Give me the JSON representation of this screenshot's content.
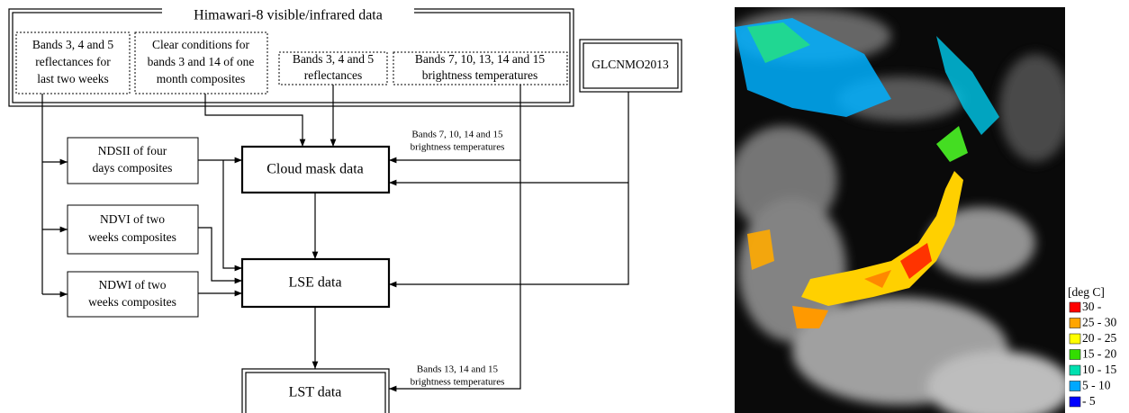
{
  "flowchart": {
    "source": {
      "title": "Himawari-8 visible/infrared data",
      "inputs": [
        [
          "Bands 3, 4 and 5",
          "reflectances for",
          "last two weeks"
        ],
        [
          "Clear conditions for",
          "bands 3 and 14 of one",
          "month composites"
        ],
        [
          "Bands 3, 4 and 5",
          "reflectances"
        ],
        [
          "Bands 7, 10, 13, 14 and 15",
          "brightness temperatures"
        ]
      ]
    },
    "glcnmo": "GLCNMO2013",
    "indices": [
      [
        "NDSII of four",
        "days composites"
      ],
      [
        "NDVI of two",
        "weeks composites"
      ],
      [
        "NDWI of two",
        "weeks composites"
      ]
    ],
    "cloud_mask": "Cloud mask data",
    "lse": "LSE data",
    "lst": "LST data",
    "edge_labels": [
      [
        "Bands 7, 10, 14 and 15",
        "brightness temperatures"
      ],
      [
        "Bands 13, 14 and 15",
        "brightness temperatures"
      ]
    ]
  },
  "legend": {
    "title": "[deg C]",
    "items": [
      {
        "label": "30 -",
        "color": "#ff0000"
      },
      {
        "label": "25 - 30",
        "color": "#ffa500"
      },
      {
        "label": "20 - 25",
        "color": "#ffff00"
      },
      {
        "label": "15 - 20",
        "color": "#33dd00"
      },
      {
        "label": "10 - 15",
        "color": "#00e0b0"
      },
      {
        "label": "5 - 10",
        "color": "#00a8ff"
      },
      {
        "label": "- 5",
        "color": "#0000ff"
      }
    ]
  }
}
